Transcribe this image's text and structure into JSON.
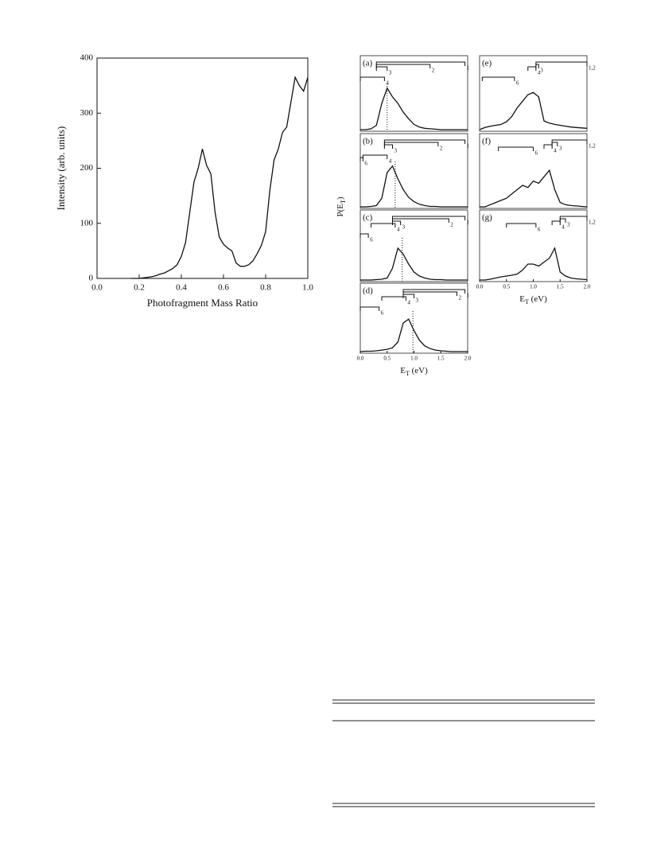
{
  "chart_data": [
    {
      "type": "line",
      "xlabel": "Photofragment Mass Ratio",
      "ylabel": "Intensity (arb. units)",
      "x": [
        0.16,
        0.18,
        0.2,
        0.22,
        0.24,
        0.26,
        0.28,
        0.3,
        0.32,
        0.34,
        0.36,
        0.38,
        0.4,
        0.42,
        0.44,
        0.46,
        0.48,
        0.5,
        0.52,
        0.54,
        0.56,
        0.58,
        0.6,
        0.62,
        0.64,
        0.66,
        0.68,
        0.7,
        0.72,
        0.74,
        0.76,
        0.78,
        0.8,
        0.82,
        0.84,
        0.86,
        0.88,
        0.9,
        0.92,
        0.94,
        0.96,
        0.98,
        1.0
      ],
      "values": [
        0,
        0,
        0,
        1,
        2,
        3,
        5,
        8,
        10,
        14,
        18,
        25,
        40,
        65,
        120,
        175,
        200,
        235,
        205,
        190,
        120,
        75,
        62,
        55,
        50,
        28,
        22,
        22,
        25,
        32,
        45,
        60,
        85,
        160,
        215,
        235,
        265,
        275,
        320,
        365,
        350,
        340,
        365
      ],
      "color": "#111111",
      "xlim": [
        0,
        1
      ],
      "ylim": [
        0,
        400
      ],
      "xticks": [
        {
          "value": 0,
          "label": "0.0"
        },
        {
          "value": 0.2,
          "label": "0.2"
        },
        {
          "value": 0.4,
          "label": "0.4"
        },
        {
          "value": 0.6,
          "label": "0.6"
        },
        {
          "value": 0.8,
          "label": "0.8"
        },
        {
          "value": 1,
          "label": "1.0"
        }
      ],
      "yticks": [
        0,
        100,
        200,
        300,
        400
      ]
    },
    {
      "type": "panel",
      "label": "(a)",
      "xlim": [
        0,
        2
      ],
      "ylim": [
        0,
        100
      ],
      "dotted_x": 0.5,
      "x": [
        0,
        0.1,
        0.2,
        0.3,
        0.4,
        0.5,
        0.6,
        0.7,
        0.8,
        0.9,
        1,
        1.1,
        1.2,
        1.3,
        1.4,
        1.5,
        1.6,
        1.7,
        1.8,
        1.9,
        2
      ],
      "values": [
        0,
        0,
        2,
        10,
        60,
        95,
        75,
        60,
        40,
        25,
        12,
        6,
        3,
        2,
        1,
        0,
        0,
        0,
        0,
        0,
        0
      ],
      "brackets": [
        {
          "label": "1",
          "range": [
            0.3,
            1.95
          ]
        },
        {
          "label": "2",
          "range": [
            0.3,
            1.3
          ]
        },
        {
          "label": "3",
          "range": [
            0.3,
            0.5
          ]
        },
        {
          "label": "4",
          "range": [
            0,
            0.45
          ]
        }
      ]
    },
    {
      "type": "panel",
      "label": "(b)",
      "xlim": [
        0,
        2
      ],
      "ylim": [
        0,
        100
      ],
      "dotted_x": 0.65,
      "ylabel": [
        "P(E",
        "T",
        ")"
      ],
      "x": [
        0,
        0.1,
        0.2,
        0.3,
        0.4,
        0.5,
        0.6,
        0.7,
        0.8,
        0.9,
        1,
        1.1,
        1.2,
        1.3,
        1.4,
        1.5,
        1.6,
        1.7,
        1.8,
        1.9,
        2
      ],
      "values": [
        0,
        0,
        1,
        3,
        20,
        80,
        95,
        65,
        40,
        22,
        12,
        6,
        3,
        1,
        1,
        0,
        0,
        0,
        0,
        0,
        0
      ],
      "brackets": [
        {
          "label": "1",
          "range": [
            0.45,
            1.95
          ]
        },
        {
          "label": "2",
          "range": [
            0.45,
            1.45
          ]
        },
        {
          "label": "3",
          "range": [
            0.45,
            0.6
          ]
        },
        {
          "label": "4",
          "range": [
            0.05,
            0.5
          ]
        },
        {
          "label": "6",
          "range": [
            0,
            0.05
          ]
        }
      ]
    },
    {
      "type": "panel",
      "label": "(c)",
      "xlim": [
        0,
        2
      ],
      "ylim": [
        0,
        100
      ],
      "dotted_x": 0.78,
      "x": [
        0,
        0.1,
        0.2,
        0.3,
        0.4,
        0.5,
        0.6,
        0.7,
        0.8,
        0.9,
        1,
        1.1,
        1.2,
        1.3,
        1.4,
        1.5,
        1.6,
        1.7,
        1.8,
        1.9,
        2
      ],
      "values": [
        0,
        0,
        0,
        1,
        2,
        5,
        30,
        80,
        65,
        40,
        20,
        10,
        5,
        2,
        1,
        1,
        0,
        0,
        0,
        0,
        0
      ],
      "brackets": [
        {
          "label": "1",
          "range": [
            0.6,
            1.95
          ]
        },
        {
          "label": "2",
          "range": [
            0.6,
            1.65
          ]
        },
        {
          "label": "3",
          "range": [
            0.6,
            0.75
          ]
        },
        {
          "label": "4",
          "range": [
            0.2,
            0.65
          ]
        },
        {
          "label": "6",
          "range": [
            0,
            0.15
          ]
        }
      ]
    },
    {
      "type": "panel",
      "label": "(d)",
      "xlim": [
        0,
        2
      ],
      "ylim": [
        0,
        100
      ],
      "dotted_x": 0.98,
      "xlabel": [
        "E",
        "T",
        " (eV)"
      ],
      "xticks": [
        {
          "value": 0,
          "label": "0.0"
        },
        {
          "value": 0.5,
          "label": "0.5"
        },
        {
          "value": 1,
          "label": "1.0"
        },
        {
          "value": 1.5,
          "label": "1.5"
        },
        {
          "value": 2,
          "label": "2.0"
        }
      ],
      "x": [
        0,
        0.1,
        0.2,
        0.3,
        0.4,
        0.5,
        0.6,
        0.7,
        0.8,
        0.9,
        1,
        1.1,
        1.2,
        1.3,
        1.4,
        1.5,
        1.6,
        1.7,
        1.8,
        1.9,
        2
      ],
      "values": [
        0,
        1,
        1,
        2,
        4,
        6,
        10,
        25,
        75,
        85,
        55,
        30,
        15,
        8,
        4,
        2,
        1,
        0,
        0,
        0,
        0
      ],
      "brackets": [
        {
          "label": "1",
          "range": [
            0.8,
            1.95
          ]
        },
        {
          "label": "2",
          "range": [
            0.8,
            1.8
          ]
        },
        {
          "label": "3",
          "range": [
            0.8,
            1.0
          ]
        },
        {
          "label": "4",
          "range": [
            0.4,
            0.85
          ]
        },
        {
          "label": "6",
          "range": [
            0,
            0.35
          ]
        }
      ]
    },
    {
      "type": "panel",
      "label": "(e)",
      "xlim": [
        0,
        2
      ],
      "ylim": [
        0,
        100
      ],
      "x": [
        0,
        0.1,
        0.2,
        0.3,
        0.4,
        0.5,
        0.6,
        0.7,
        0.8,
        0.9,
        1,
        1.1,
        1.2,
        1.3,
        1.4,
        1.5,
        1.6,
        1.7,
        1.8,
        1.9,
        2
      ],
      "values": [
        0,
        5,
        8,
        10,
        12,
        18,
        30,
        50,
        65,
        80,
        85,
        75,
        20,
        15,
        12,
        10,
        8,
        6,
        5,
        4,
        3
      ],
      "brackets": [
        {
          "label": "1,2",
          "range": [
            1.05,
            2.0
          ]
        },
        {
          "label": "3",
          "range": [
            1.05,
            1.1
          ]
        },
        {
          "label": "4",
          "range": [
            0.9,
            1.05
          ]
        },
        {
          "label": "6",
          "range": [
            0.05,
            0.65
          ]
        }
      ]
    },
    {
      "type": "panel",
      "label": "(f)",
      "xlim": [
        0,
        2
      ],
      "ylim": [
        0,
        100
      ],
      "x": [
        0,
        0.1,
        0.2,
        0.3,
        0.4,
        0.5,
        0.6,
        0.7,
        0.8,
        0.9,
        1,
        1.1,
        1.2,
        1.3,
        1.4,
        1.5,
        1.6,
        1.7,
        1.8,
        1.9,
        2
      ],
      "values": [
        0,
        0,
        5,
        10,
        15,
        20,
        30,
        40,
        50,
        45,
        60,
        55,
        70,
        85,
        40,
        10,
        5,
        3,
        2,
        1,
        0
      ],
      "brackets": [
        {
          "label": "1,2",
          "range": [
            1.35,
            2.0
          ]
        },
        {
          "label": "3",
          "range": [
            1.35,
            1.45
          ]
        },
        {
          "label": "4",
          "range": [
            1.2,
            1.35
          ]
        },
        {
          "label": "6",
          "range": [
            0.35,
            1.0
          ]
        }
      ]
    },
    {
      "type": "panel",
      "label": "(g)",
      "xlim": [
        0,
        2
      ],
      "ylim": [
        0,
        100
      ],
      "xlabel": [
        "E",
        "T",
        " (eV)"
      ],
      "xticks": [
        {
          "value": 0,
          "label": "0.0"
        },
        {
          "value": 0.5,
          "label": "0.5"
        },
        {
          "value": 1,
          "label": "1.0"
        },
        {
          "value": 1.5,
          "label": "1.5"
        },
        {
          "value": 2,
          "label": "2.0"
        }
      ],
      "x": [
        0,
        0.1,
        0.2,
        0.3,
        0.4,
        0.5,
        0.6,
        0.7,
        0.8,
        0.9,
        1,
        1.1,
        1.2,
        1.3,
        1.4,
        1.5,
        1.6,
        1.7,
        1.8,
        1.9,
        2
      ],
      "values": [
        0,
        0,
        2,
        5,
        8,
        10,
        12,
        15,
        25,
        40,
        40,
        35,
        45,
        55,
        80,
        20,
        10,
        5,
        3,
        2,
        1
      ],
      "brackets": [
        {
          "label": "1,2",
          "range": [
            1.5,
            2.0
          ]
        },
        {
          "label": "3",
          "range": [
            1.5,
            1.6
          ]
        },
        {
          "label": "4",
          "range": [
            1.35,
            1.5
          ]
        },
        {
          "label": "6",
          "range": [
            0.5,
            1.05
          ]
        }
      ]
    }
  ]
}
